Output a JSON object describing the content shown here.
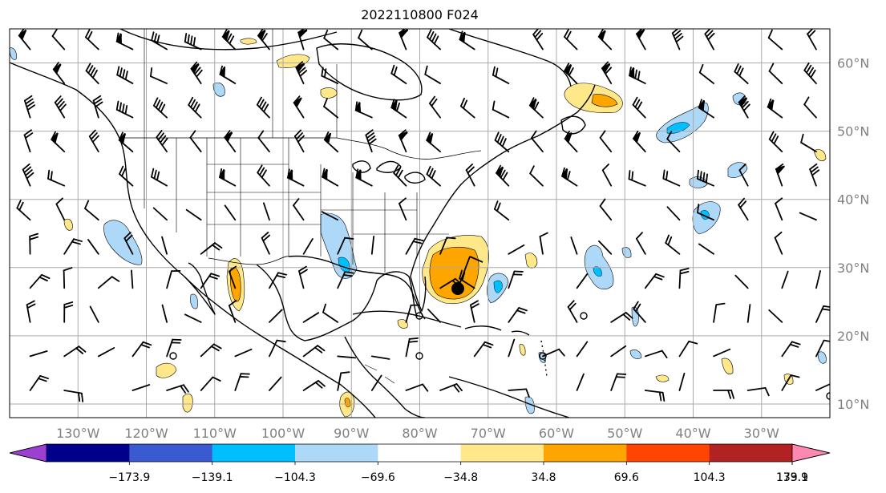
{
  "title": "2022110800 F024",
  "map": {
    "projection": "lat-lon",
    "lon_range": [
      -140,
      -20
    ],
    "lat_range": [
      8,
      65
    ],
    "lon_ticks": [
      "130°W",
      "120°W",
      "110°W",
      "100°W",
      "90°W",
      "80°W",
      "70°W",
      "60°W",
      "50°W",
      "40°W",
      "30°W"
    ],
    "lat_ticks": [
      "60°N",
      "50°N",
      "40°N",
      "30°N",
      "20°N",
      "10°N"
    ],
    "grid": true,
    "features": [
      "coastlines",
      "country borders",
      "US state borders",
      "wind barbs",
      "contoured shading"
    ],
    "storm_marker": "filled black circle near 27°N, 75°W"
  },
  "colorbar": {
    "ticks": [
      "−173.9",
      "−139.1",
      "−104.3",
      "−69.6",
      "−34.8",
      "34.8",
      "69.6",
      "104.3",
      "139.1",
      "173.9"
    ],
    "colors": [
      "#9b40d1",
      "#00008b",
      "#3a5bd0",
      "#00bfff",
      "#add8f8",
      "#ffffff",
      "#ffe88a",
      "#ffa500",
      "#ff4500",
      "#b22222",
      "#ff88b0"
    ],
    "extend": "both"
  }
}
